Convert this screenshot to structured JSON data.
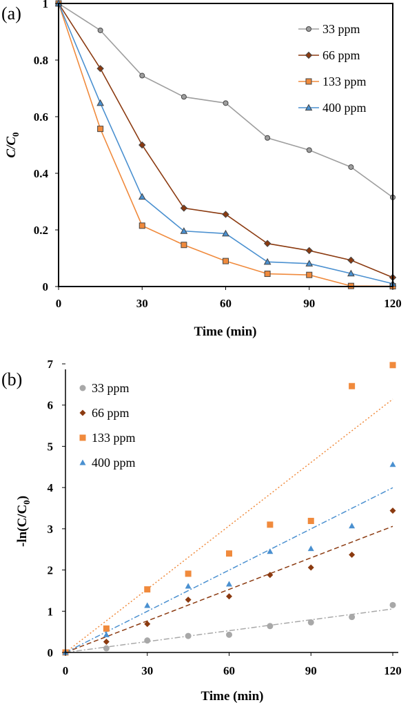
{
  "chart_data": [
    {
      "panel_label": "(a)",
      "type": "line",
      "xlabel": "Time (min)",
      "ylabel": {
        "main": "C/C",
        "sub": "0"
      },
      "x": [
        0,
        15,
        30,
        45,
        60,
        75,
        90,
        105,
        120
      ],
      "xlim": [
        0,
        120
      ],
      "ylim": [
        0,
        1
      ],
      "xticks": [
        0,
        30,
        60,
        90,
        120
      ],
      "xtick_labels": [
        "0",
        "30",
        "60",
        "90",
        "120"
      ],
      "yticks": [
        0,
        0.2,
        0.4,
        0.6,
        0.8,
        1
      ],
      "ytick_labels": [
        "0",
        "0.2",
        "0.4",
        "0.6",
        "0.8",
        "1"
      ],
      "grid": false,
      "legend_position": "top-right",
      "series": [
        {
          "name": "33 ppm",
          "color": "#9e9e9e",
          "marker": "circle",
          "values": [
            1.0,
            0.905,
            0.745,
            0.67,
            0.648,
            0.525,
            0.482,
            0.422,
            0.315
          ]
        },
        {
          "name": "66 ppm",
          "color": "#8b3a10",
          "marker": "diamond",
          "values": [
            1.0,
            0.77,
            0.5,
            0.277,
            0.255,
            0.152,
            0.127,
            0.093,
            0.032
          ]
        },
        {
          "name": "133 ppm",
          "color": "#f08a3c",
          "marker": "square",
          "values": [
            1.0,
            0.557,
            0.215,
            0.147,
            0.09,
            0.045,
            0.041,
            0.002,
            0.001
          ]
        },
        {
          "name": "400 ppm",
          "color": "#4a90d0",
          "marker": "triangle",
          "values": [
            1.0,
            0.648,
            0.317,
            0.196,
            0.187,
            0.087,
            0.081,
            0.046,
            0.01
          ]
        }
      ]
    },
    {
      "panel_label": "(b)",
      "type": "scatter",
      "xlabel": "Time (min)",
      "ylabel": {
        "main": "-ln(C/C",
        "sub": "0",
        "close": ")"
      },
      "x": [
        0,
        15,
        30,
        45,
        60,
        75,
        90,
        105,
        120
      ],
      "xlim": [
        0,
        120
      ],
      "ylim": [
        0,
        7
      ],
      "xticks": [
        0,
        30,
        60,
        90,
        120
      ],
      "xtick_labels": [
        "0",
        "30",
        "60",
        "90",
        "120"
      ],
      "yticks": [
        0,
        1,
        2,
        3,
        4,
        5,
        6,
        7
      ],
      "ytick_labels": [
        "0",
        "1",
        "2",
        "3",
        "4",
        "5",
        "6",
        "7"
      ],
      "grid": false,
      "legend_position": "top-left",
      "series": [
        {
          "name": "33 ppm",
          "color": "#a8a8a8",
          "marker": "circle",
          "trendline": "dash-dot",
          "slope": 0.0088,
          "values": [
            0,
            0.1,
            0.29,
            0.4,
            0.43,
            0.64,
            0.73,
            0.86,
            1.15
          ]
        },
        {
          "name": "66 ppm",
          "color": "#8b3a10",
          "marker": "diamond",
          "trendline": "dashed",
          "slope": 0.0255,
          "values": [
            0,
            0.26,
            0.69,
            1.28,
            1.36,
            1.88,
            2.06,
            2.37,
            3.44
          ]
        },
        {
          "name": "133 ppm",
          "color": "#f08a3c",
          "marker": "square",
          "trendline": "dotted",
          "slope": 0.0512,
          "values": [
            0,
            0.58,
            1.53,
            1.91,
            2.4,
            3.1,
            3.19,
            6.46,
            6.97
          ]
        },
        {
          "name": "400 ppm",
          "color": "#4a90d0",
          "marker": "triangle",
          "trendline": "dash-dot",
          "slope": 0.0333,
          "values": [
            0,
            0.43,
            1.14,
            1.61,
            1.66,
            2.45,
            2.52,
            3.07,
            4.56
          ]
        }
      ]
    }
  ]
}
